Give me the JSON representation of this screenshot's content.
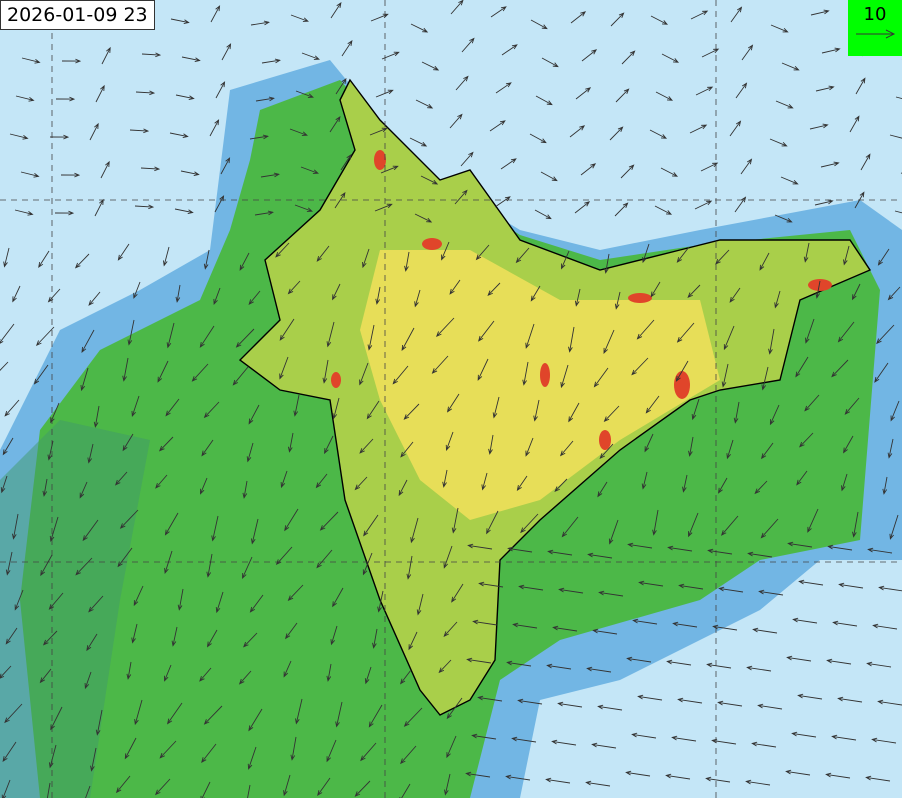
{
  "timestamp": "2026-01-09 23",
  "legend": {
    "reference_vector_value": "10",
    "icon": "arrow-right-icon",
    "background_color": "#00ff00"
  },
  "colors": {
    "ocean": "#c4e6f7",
    "low": "#4fa0d8",
    "mid": "#4cb848",
    "high": "#f2e15a",
    "peak": "#e0452a"
  }
}
